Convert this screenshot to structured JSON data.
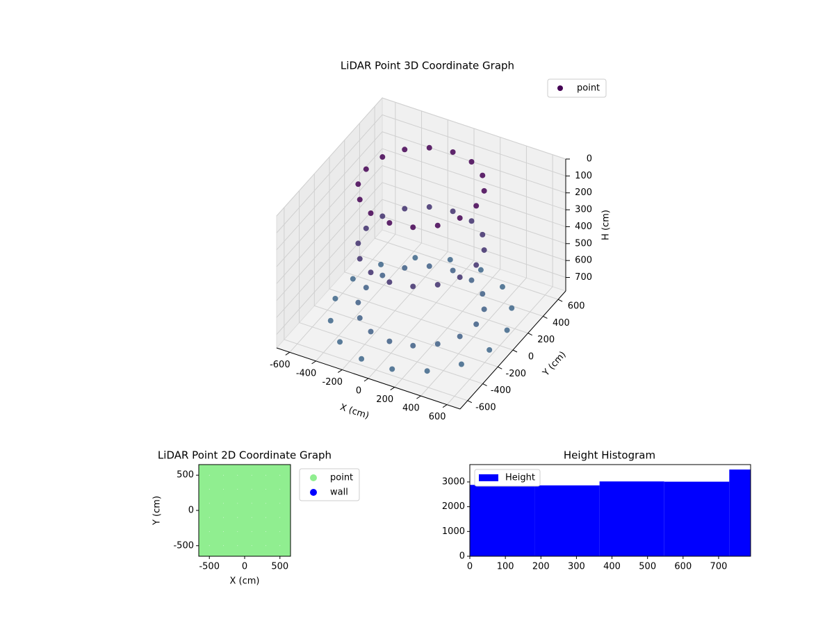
{
  "chart_data": [
    {
      "type": "scatter3d",
      "title": "LiDAR Point 3D Coordinate Graph",
      "xlabel": "X (cm)",
      "ylabel": "Y (cm)",
      "zlabel": "H (cm)",
      "xlim": [
        -700,
        700
      ],
      "ylim": [
        -700,
        700
      ],
      "zlim": [
        780,
        0
      ],
      "xticks": [
        -600,
        -400,
        -200,
        0,
        200,
        400,
        600
      ],
      "yticks": [
        -600,
        -400,
        -200,
        0,
        200,
        400,
        600
      ],
      "zticks": [
        0,
        100,
        200,
        300,
        400,
        500,
        600,
        700
      ],
      "color_range": [
        "#440154",
        "#3e6a8c"
      ],
      "legend": "upper right",
      "series": [
        {
          "name": "point",
          "color": "#440154",
          "x": [
            420,
            388,
            297,
            161,
            0,
            -161,
            -297,
            -388,
            -420,
            -388,
            -297,
            -161,
            0,
            161,
            297,
            388,
            420,
            388,
            297,
            161,
            0,
            -161,
            -297,
            -388,
            -420,
            -388,
            -297,
            -161,
            0,
            161,
            297,
            388,
            420,
            388,
            297,
            161,
            0,
            -161,
            -297,
            -388,
            -420,
            -388,
            -297,
            -161,
            0,
            161,
            297,
            388,
            588,
            499,
            333,
            117,
            -117,
            -333,
            -499,
            -588,
            -588,
            -499,
            -333,
            -117,
            117,
            333,
            499,
            588
          ],
          "y": [
            0,
            161,
            297,
            388,
            420,
            388,
            297,
            161,
            0,
            -161,
            -297,
            -388,
            -420,
            -388,
            -297,
            -161,
            0,
            161,
            297,
            388,
            420,
            388,
            297,
            161,
            0,
            -161,
            -297,
            -388,
            -420,
            -388,
            -297,
            -161,
            0,
            161,
            297,
            388,
            420,
            388,
            297,
            161,
            0,
            -161,
            -297,
            -388,
            -420,
            -388,
            -297,
            -161,
            117,
            333,
            499,
            588,
            588,
            499,
            333,
            117,
            -117,
            -333,
            -499,
            -588,
            -588,
            -499,
            -333,
            -117
          ],
          "h": [
            0,
            0,
            0,
            0,
            0,
            0,
            0,
            0,
            0,
            0,
            0,
            0,
            0,
            0,
            0,
            0,
            350,
            350,
            350,
            350,
            350,
            350,
            350,
            350,
            350,
            350,
            350,
            350,
            350,
            350,
            350,
            350,
            700,
            700,
            700,
            700,
            700,
            700,
            700,
            700,
            700,
            700,
            700,
            700,
            700,
            700,
            700,
            700,
            750,
            750,
            750,
            750,
            750,
            750,
            750,
            750,
            750,
            750,
            750,
            750,
            750,
            750,
            750,
            750
          ]
        }
      ]
    },
    {
      "type": "scatter",
      "title": "LiDAR Point 2D Coordinate Graph",
      "xlabel": "X (cm)",
      "ylabel": "Y (cm)",
      "xlim": [
        -650,
        650
      ],
      "ylim": [
        -650,
        650
      ],
      "xticks": [
        -500,
        0,
        500
      ],
      "yticks": [
        -500,
        0,
        500
      ],
      "legend": "outside right",
      "series": [
        {
          "name": "point",
          "color": "#90ee90",
          "x": [
            -600,
            -400,
            -200,
            0,
            200,
            400,
            600,
            -600,
            -400,
            -200,
            0,
            200,
            400,
            600,
            -600,
            -400,
            -200,
            0,
            200,
            400,
            600,
            -600,
            -400,
            -200,
            0,
            200,
            400,
            600,
            -600,
            -400,
            -200,
            0,
            200,
            400,
            600,
            -600,
            -400,
            -200,
            0,
            200,
            400,
            600,
            -600,
            -400,
            -200,
            0,
            200,
            400,
            600
          ],
          "y": [
            -600,
            -600,
            -600,
            -600,
            -600,
            -600,
            -600,
            -400,
            -400,
            -400,
            -400,
            -400,
            -400,
            -400,
            -200,
            -200,
            -200,
            -200,
            -200,
            -200,
            -200,
            0,
            0,
            0,
            0,
            0,
            0,
            0,
            200,
            200,
            200,
            200,
            200,
            200,
            200,
            400,
            400,
            400,
            400,
            400,
            400,
            400,
            600,
            600,
            600,
            600,
            600,
            600,
            600
          ]
        },
        {
          "name": "wall",
          "color": "#0000ff",
          "x": [],
          "y": []
        }
      ]
    },
    {
      "type": "histogram",
      "title": "Height Histogram",
      "xlim": [
        0,
        790
      ],
      "ylim": [
        0,
        3700
      ],
      "xticks": [
        0,
        100,
        200,
        300,
        400,
        500,
        600,
        700
      ],
      "yticks": [
        0,
        1000,
        2000,
        3000
      ],
      "legend": "upper left",
      "series": [
        {
          "name": "Height",
          "color": "#0000ff",
          "bins": [
            0,
            182,
            365,
            547,
            730,
            790
          ],
          "counts": [
            2880,
            2860,
            3020,
            3010,
            3500
          ]
        }
      ]
    }
  ]
}
